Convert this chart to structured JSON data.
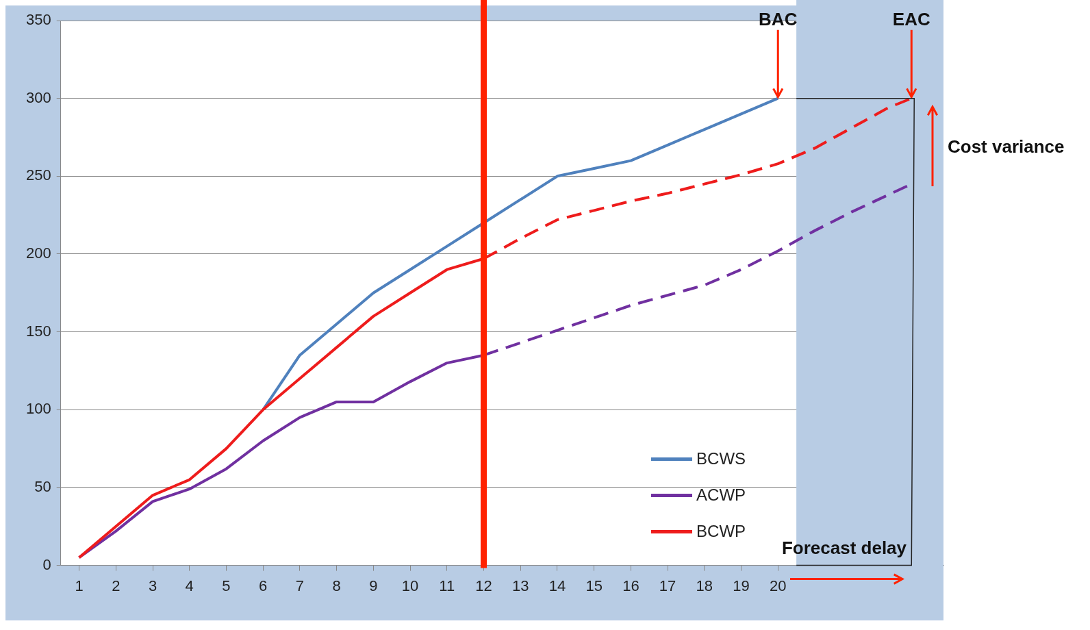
{
  "chart_data": {
    "type": "line",
    "xlim": [
      0.5,
      24.5
    ],
    "xticks": [
      1,
      2,
      3,
      4,
      5,
      6,
      7,
      8,
      9,
      10,
      11,
      12,
      13,
      14,
      15,
      16,
      17,
      18,
      19,
      20
    ],
    "ylim": [
      0,
      350
    ],
    "yticks": [
      0,
      50,
      100,
      150,
      200,
      250,
      300,
      350
    ],
    "grid": "y",
    "legend": "bottom right",
    "marker": "none",
    "series": [
      {
        "name": "BCWS",
        "color": "#4f81bd",
        "line_style": "solid",
        "x": [
          6,
          7,
          8,
          9,
          10,
          11,
          12,
          13,
          14,
          15,
          16,
          17,
          18,
          19,
          20
        ],
        "values": [
          100,
          135,
          155,
          175,
          190,
          205,
          220,
          235,
          250,
          255,
          260,
          270,
          280,
          290,
          300
        ]
      },
      {
        "name": "ACWP",
        "color": "#7030a0",
        "line_style": "solid",
        "x": [
          1,
          2,
          3,
          4,
          5,
          6,
          7,
          8,
          9,
          10,
          11,
          12
        ],
        "values": [
          5,
          22,
          41,
          49,
          62,
          80,
          95,
          105,
          105,
          118,
          130,
          135
        ]
      },
      {
        "name": "BCWP",
        "color": "#ee1c1c",
        "line_style": "solid",
        "x": [
          1,
          2,
          3,
          4,
          5,
          6,
          7,
          8,
          9,
          10,
          11,
          12
        ],
        "values": [
          5,
          25,
          45,
          55,
          75,
          100,
          120,
          140,
          160,
          175,
          190,
          197
        ]
      },
      {
        "color": "#ee1c1c",
        "line_style": "dashed",
        "x": [
          12,
          13,
          14,
          15,
          16,
          17,
          18,
          19,
          20,
          21,
          22,
          23,
          23.63
        ],
        "values": [
          197,
          210,
          222,
          228,
          234,
          239,
          245,
          251,
          258,
          268,
          281,
          294,
          300
        ]
      },
      {
        "color": "#7030a0",
        "line_style": "dashed",
        "x": [
          12,
          14,
          16,
          18,
          19,
          20,
          21,
          22,
          23,
          23.63
        ],
        "values": [
          135,
          151,
          167,
          180,
          190,
          202,
          215,
          227,
          238,
          245
        ]
      }
    ],
    "bands": [
      {
        "axis": "x",
        "from": 20.5,
        "to": 24.5,
        "color": "#b8cce4"
      }
    ],
    "ref_lines": [
      {
        "axis": "x",
        "value": 12,
        "color": "#ff2200"
      }
    ],
    "annotations": [
      {
        "text": "BAC",
        "x": 20,
        "y": 300
      },
      {
        "text": "EAC",
        "x": 23.63,
        "y": 300
      },
      "Cost variance",
      "Forecast delay"
    ]
  }
}
